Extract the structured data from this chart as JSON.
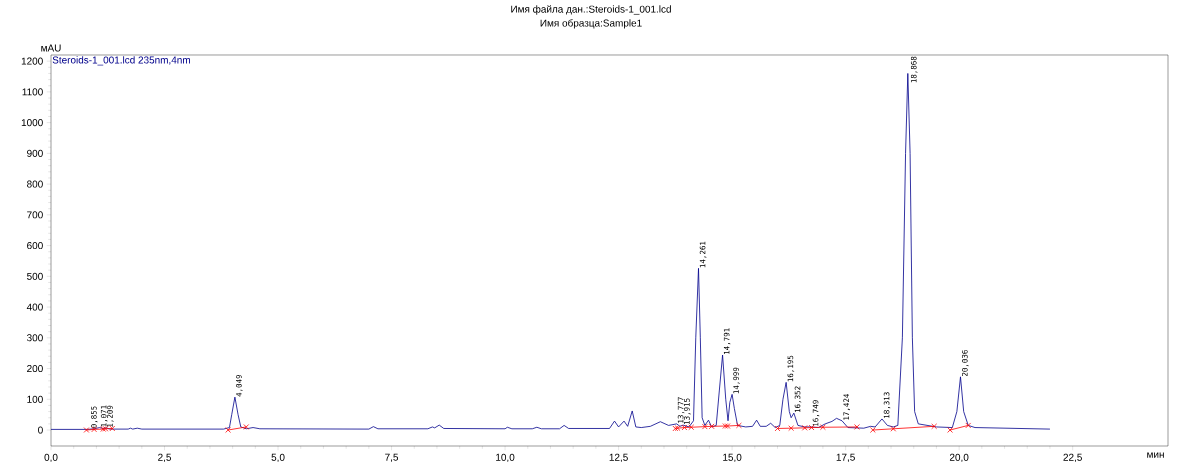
{
  "chart_data": {
    "type": "line",
    "title": "Имя файла дан.:Steroids-1_001.lcd",
    "subtitle": "Имя образца:Sample1",
    "xlabel": "мин",
    "ylabel": "мAU",
    "xlim": [
      0,
      24.6
    ],
    "ylim": [
      -52,
      1220
    ],
    "xticks": [
      {
        "value": 0,
        "label": "0,0"
      },
      {
        "value": 2.5,
        "label": "2,5"
      },
      {
        "value": 5,
        "label": "5,0"
      },
      {
        "value": 7.5,
        "label": "7,5"
      },
      {
        "value": 10,
        "label": "10,0"
      },
      {
        "value": 12.5,
        "label": "12,5"
      },
      {
        "value": 15,
        "label": "15,0"
      },
      {
        "value": 17.5,
        "label": "17,5"
      },
      {
        "value": 20,
        "label": "20,0"
      },
      {
        "value": 22.5,
        "label": "22,5"
      }
    ],
    "yticks": [
      0,
      100,
      200,
      300,
      400,
      500,
      600,
      700,
      800,
      900,
      1000,
      1100,
      1200
    ],
    "legend": "top left",
    "series": [
      {
        "name": "Steroids-1_001.lcd 235nm,4nm",
        "color": "#00008b",
        "marker": "none",
        "line_style": "solid",
        "x": [
          0,
          0.8,
          0.95,
          1.07,
          1.15,
          1.21,
          1.3,
          1.7,
          1.75,
          1.8,
          1.9,
          2.0,
          3.8,
          3.93,
          3.98,
          4.05,
          4.12,
          4.18,
          4.3,
          4.45,
          4.6,
          7.0,
          7.1,
          7.2,
          8.3,
          8.4,
          8.45,
          8.55,
          8.65,
          10.0,
          10.05,
          10.15,
          10.6,
          10.7,
          10.8,
          11.2,
          11.3,
          11.4,
          12.3,
          12.41,
          12.5,
          12.62,
          12.7,
          12.8,
          12.88,
          13.0,
          13.2,
          13.42,
          13.6,
          13.78,
          13.85,
          13.92,
          14.05,
          14.15,
          14.2,
          14.26,
          14.3,
          14.34,
          14.4,
          14.48,
          14.55,
          14.65,
          14.72,
          14.79,
          14.86,
          14.91,
          14.95,
          15.0,
          15.05,
          15.12,
          15.3,
          15.45,
          15.54,
          15.62,
          15.75,
          15.85,
          15.95,
          16.05,
          16.12,
          16.19,
          16.26,
          16.3,
          16.36,
          16.45,
          16.6,
          16.75,
          16.9,
          17.05,
          17.2,
          17.3,
          17.42,
          17.55,
          17.9,
          18.05,
          18.15,
          18.3,
          18.42,
          18.55,
          18.65,
          18.75,
          18.82,
          18.87,
          18.92,
          18.97,
          19.02,
          19.1,
          19.5,
          19.85,
          19.95,
          20.03,
          20.1,
          20.2,
          20.35,
          22.0
        ],
        "values": [
          2,
          2,
          4,
          8,
          5,
          7,
          3,
          3,
          6,
          3,
          6,
          3,
          3,
          8,
          50,
          107,
          50,
          10,
          4,
          8,
          4,
          3,
          11,
          4,
          4,
          10,
          7,
          16,
          5,
          4,
          9,
          4,
          4,
          9,
          4,
          4,
          15,
          5,
          5,
          29,
          10,
          29,
          12,
          62,
          10,
          8,
          12,
          27,
          15,
          20,
          12,
          16,
          10,
          30,
          300,
          526,
          300,
          40,
          15,
          32,
          10,
          15,
          130,
          244,
          100,
          30,
          90,
          116,
          70,
          15,
          10,
          12,
          32,
          12,
          12,
          22,
          8,
          15,
          100,
          155,
          60,
          40,
          55,
          15,
          10,
          10,
          8,
          20,
          28,
          38,
          30,
          8,
          6,
          12,
          10,
          36,
          15,
          10,
          15,
          300,
          900,
          1160,
          900,
          300,
          60,
          20,
          10,
          8,
          60,
          173,
          60,
          15,
          8,
          3
        ]
      },
      {
        "color": "#ff0000",
        "marker": "cross",
        "line_style": "solid",
        "x": [
          0.78,
          0.95,
          1.15,
          1.2,
          1.35,
          2.5,
          3.9,
          4.3,
          9.0,
          13.75,
          13.8,
          13.95,
          14.1,
          14.4,
          14.55,
          14.85,
          14.9,
          15.15,
          15.5,
          16.0,
          16.3,
          16.6,
          16.75,
          17.0,
          17.75,
          17.9,
          18.1,
          18.55,
          19.45,
          19.6,
          19.8,
          20.2
        ],
        "values": [
          0,
          2,
          3,
          4,
          5,
          null,
          0,
          10,
          null,
          5,
          6,
          8,
          9,
          11,
          12,
          13,
          13,
          15,
          null,
          5,
          6,
          7,
          8,
          9,
          10,
          null,
          0,
          4,
          12,
          null,
          0,
          15
        ]
      }
    ],
    "annotations": [
      {
        "text": "0,855",
        "x": 0.855,
        "y": 5
      },
      {
        "text": "1,071",
        "x": 1.071,
        "y": 8
      },
      {
        "text": "1,209",
        "x": 1.209,
        "y": 7
      },
      {
        "text": "4,049",
        "x": 4.049,
        "y": 107
      },
      {
        "text": "13,777",
        "x": 13.777,
        "y": 20
      },
      {
        "text": "13,915",
        "x": 13.915,
        "y": 16
      },
      {
        "text": "14,261",
        "x": 14.261,
        "y": 526
      },
      {
        "text": "14,791",
        "x": 14.791,
        "y": 244
      },
      {
        "text": "14,999",
        "x": 14.999,
        "y": 116
      },
      {
        "text": "16,195",
        "x": 16.195,
        "y": 155
      },
      {
        "text": "16,352",
        "x": 16.352,
        "y": 55
      },
      {
        "text": "16,749",
        "x": 16.749,
        "y": 10
      },
      {
        "text": "17,424",
        "x": 17.424,
        "y": 30
      },
      {
        "text": "18,313",
        "x": 18.313,
        "y": 36
      },
      {
        "text": "18,868",
        "x": 18.868,
        "y": 1160
      },
      {
        "text": "20,036",
        "x": 20.036,
        "y": 173
      }
    ]
  }
}
